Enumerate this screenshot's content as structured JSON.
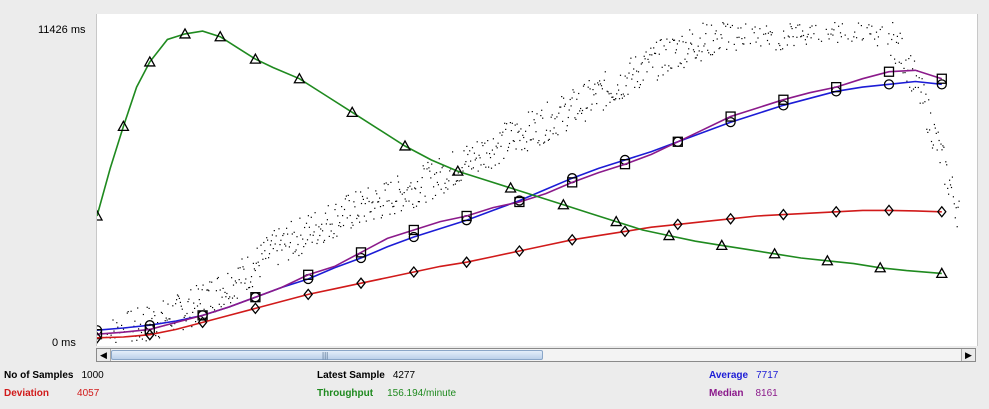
{
  "chart_data": {
    "type": "line",
    "y_max_label": "11426 ms",
    "y_min_label": "0 ms",
    "ylim": [
      0,
      11426
    ],
    "x_range": [
      0,
      1000
    ],
    "series": [
      {
        "key": "data",
        "color": "#000000",
        "style": "dots",
        "points": [
          [
            10,
            200
          ],
          [
            50,
            600
          ],
          [
            80,
            900
          ],
          [
            110,
            1300
          ],
          [
            140,
            1900
          ],
          [
            170,
            2500
          ],
          [
            200,
            3300
          ],
          [
            230,
            3800
          ],
          [
            260,
            4300
          ],
          [
            290,
            4700
          ],
          [
            320,
            5000
          ],
          [
            350,
            5400
          ],
          [
            380,
            5800
          ],
          [
            410,
            6300
          ],
          [
            440,
            6800
          ],
          [
            470,
            7300
          ],
          [
            500,
            7700
          ],
          [
            530,
            8200
          ],
          [
            560,
            8700
          ],
          [
            590,
            9200
          ],
          [
            620,
            9800
          ],
          [
            650,
            10300
          ],
          [
            680,
            10700
          ],
          [
            710,
            11000
          ],
          [
            740,
            11200
          ],
          [
            770,
            11100
          ],
          [
            800,
            11300
          ],
          [
            830,
            11400
          ],
          [
            860,
            11426
          ],
          [
            880,
            11400
          ],
          [
            900,
            11000
          ],
          [
            920,
            10000
          ],
          [
            940,
            8500
          ],
          [
            960,
            6500
          ],
          [
            980,
            4500
          ]
        ]
      },
      {
        "key": "average",
        "color": "#1c1cd6",
        "style": "line",
        "marker": "circle",
        "points": [
          [
            0,
            420
          ],
          [
            30,
            500
          ],
          [
            60,
            600
          ],
          [
            90,
            750
          ],
          [
            120,
            950
          ],
          [
            150,
            1250
          ],
          [
            180,
            1600
          ],
          [
            210,
            1950
          ],
          [
            240,
            2250
          ],
          [
            270,
            2650
          ],
          [
            300,
            3000
          ],
          [
            330,
            3400
          ],
          [
            360,
            3750
          ],
          [
            390,
            4050
          ],
          [
            420,
            4350
          ],
          [
            450,
            4700
          ],
          [
            480,
            5050
          ],
          [
            510,
            5450
          ],
          [
            540,
            5850
          ],
          [
            570,
            6200
          ],
          [
            600,
            6500
          ],
          [
            630,
            6800
          ],
          [
            660,
            7150
          ],
          [
            690,
            7500
          ],
          [
            720,
            7850
          ],
          [
            750,
            8150
          ],
          [
            780,
            8450
          ],
          [
            810,
            8700
          ],
          [
            840,
            8950
          ],
          [
            870,
            9100
          ],
          [
            900,
            9200
          ],
          [
            930,
            9300
          ],
          [
            960,
            9200
          ]
        ]
      },
      {
        "key": "median",
        "color": "#8b1a8b",
        "style": "line",
        "marker": "square",
        "points": [
          [
            0,
            280
          ],
          [
            30,
            350
          ],
          [
            60,
            450
          ],
          [
            90,
            700
          ],
          [
            120,
            950
          ],
          [
            150,
            1250
          ],
          [
            180,
            1600
          ],
          [
            210,
            1950
          ],
          [
            240,
            2400
          ],
          [
            270,
            2700
          ],
          [
            300,
            3200
          ],
          [
            330,
            3700
          ],
          [
            360,
            4000
          ],
          [
            390,
            4300
          ],
          [
            420,
            4500
          ],
          [
            450,
            4800
          ],
          [
            480,
            5000
          ],
          [
            510,
            5300
          ],
          [
            540,
            5700
          ],
          [
            570,
            6050
          ],
          [
            600,
            6350
          ],
          [
            630,
            6700
          ],
          [
            660,
            7150
          ],
          [
            690,
            7600
          ],
          [
            720,
            8050
          ],
          [
            750,
            8350
          ],
          [
            780,
            8650
          ],
          [
            810,
            8900
          ],
          [
            840,
            9100
          ],
          [
            870,
            9400
          ],
          [
            900,
            9650
          ],
          [
            930,
            9700
          ],
          [
            960,
            9400
          ]
        ]
      },
      {
        "key": "deviation",
        "color": "#d11a1a",
        "style": "line",
        "marker": "diamond",
        "points": [
          [
            0,
            150
          ],
          [
            30,
            180
          ],
          [
            60,
            260
          ],
          [
            90,
            450
          ],
          [
            120,
            700
          ],
          [
            150,
            950
          ],
          [
            180,
            1200
          ],
          [
            210,
            1450
          ],
          [
            240,
            1700
          ],
          [
            270,
            1900
          ],
          [
            300,
            2100
          ],
          [
            330,
            2300
          ],
          [
            360,
            2500
          ],
          [
            390,
            2700
          ],
          [
            420,
            2850
          ],
          [
            450,
            3050
          ],
          [
            480,
            3250
          ],
          [
            510,
            3450
          ],
          [
            540,
            3650
          ],
          [
            570,
            3800
          ],
          [
            600,
            3950
          ],
          [
            630,
            4100
          ],
          [
            660,
            4200
          ],
          [
            690,
            4300
          ],
          [
            720,
            4400
          ],
          [
            750,
            4500
          ],
          [
            780,
            4550
          ],
          [
            810,
            4600
          ],
          [
            840,
            4650
          ],
          [
            870,
            4700
          ],
          [
            900,
            4700
          ],
          [
            930,
            4680
          ],
          [
            960,
            4650
          ]
        ]
      },
      {
        "key": "throughput",
        "color": "#1f8a1f",
        "style": "line",
        "marker": "triangle",
        "points": [
          [
            0,
            4500
          ],
          [
            15,
            6200
          ],
          [
            30,
            7700
          ],
          [
            45,
            9100
          ],
          [
            60,
            10000
          ],
          [
            80,
            10800
          ],
          [
            100,
            11000
          ],
          [
            120,
            11100
          ],
          [
            140,
            10900
          ],
          [
            160,
            10500
          ],
          [
            180,
            10100
          ],
          [
            200,
            9800
          ],
          [
            230,
            9400
          ],
          [
            260,
            8800
          ],
          [
            290,
            8200
          ],
          [
            320,
            7600
          ],
          [
            350,
            7000
          ],
          [
            380,
            6500
          ],
          [
            410,
            6100
          ],
          [
            440,
            5800
          ],
          [
            470,
            5500
          ],
          [
            500,
            5200
          ],
          [
            530,
            4900
          ],
          [
            560,
            4600
          ],
          [
            590,
            4300
          ],
          [
            620,
            4000
          ],
          [
            650,
            3800
          ],
          [
            680,
            3600
          ],
          [
            710,
            3450
          ],
          [
            740,
            3300
          ],
          [
            770,
            3150
          ],
          [
            800,
            3000
          ],
          [
            830,
            2900
          ],
          [
            860,
            2800
          ],
          [
            890,
            2650
          ],
          [
            920,
            2550
          ],
          [
            960,
            2450
          ]
        ]
      }
    ]
  },
  "stats": {
    "samples_label": "No of Samples",
    "samples_value": "1000",
    "latest_label": "Latest Sample",
    "latest_value": "4277",
    "average_label": "Average",
    "average_value": "7717",
    "deviation_label": "Deviation",
    "deviation_value": "4057",
    "throughput_label": "Throughput",
    "throughput_value": "156.194/minute",
    "median_label": "Median",
    "median_value": "8161"
  },
  "colors": {
    "labels_black": "#000000",
    "deviation": "#d11a1a",
    "throughput": "#1f8a1f",
    "average": "#1c1cd6",
    "median": "#8b1a8b"
  },
  "icons": {
    "scroll_left": "◀",
    "scroll_right": "▶",
    "scroll_grip": "|||"
  }
}
